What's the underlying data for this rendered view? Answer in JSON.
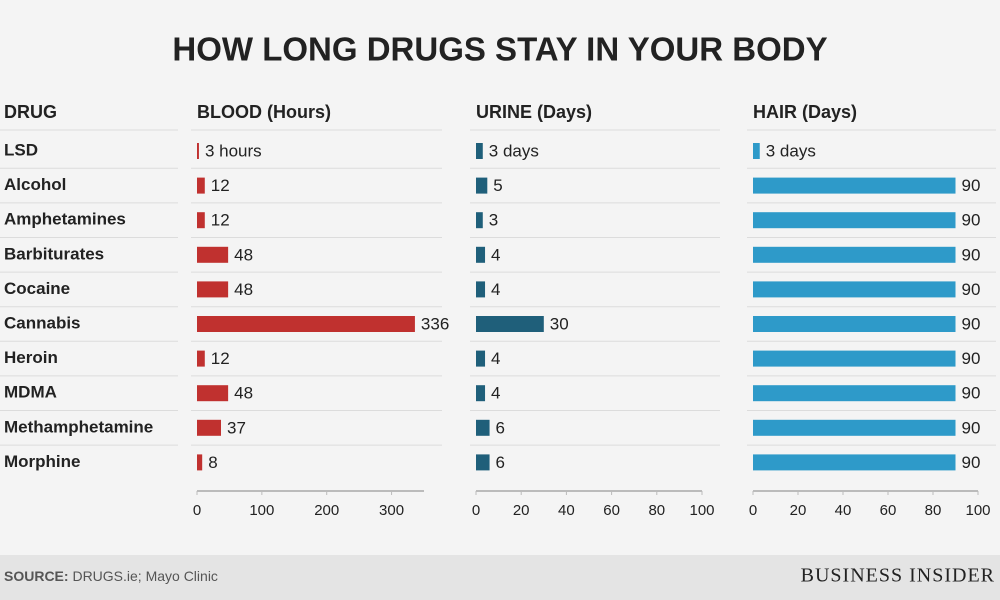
{
  "chart_data": {
    "type": "bar",
    "orientation": "horizontal",
    "title": "HOW LONG DRUGS STAY IN YOUR BODY",
    "category_label": "DRUG",
    "categories": [
      "LSD",
      "Alcohol",
      "Amphetamines",
      "Barbiturates",
      "Cocaine",
      "Cannabis",
      "Heroin",
      "MDMA",
      "Methamphetamine",
      "Morphine"
    ],
    "series": [
      {
        "name": "BLOOD (Hours)",
        "color": "#c0312f",
        "values": [
          3,
          12,
          12,
          48,
          48,
          336,
          12,
          48,
          37,
          8
        ],
        "value_labels": [
          "3 hours",
          "12",
          "12",
          "48",
          "48",
          "336",
          "12",
          "48",
          "37",
          "8"
        ],
        "xlim": [
          0,
          350
        ],
        "xticks": [
          0,
          100,
          200,
          300
        ]
      },
      {
        "name": "URINE (Days)",
        "color": "#1f5f7a",
        "values": [
          3,
          5,
          3,
          4,
          4,
          30,
          4,
          4,
          6,
          6
        ],
        "value_labels": [
          "3 days",
          "5",
          "3",
          "4",
          "4",
          "30",
          "4",
          "4",
          "6",
          "6"
        ],
        "xlim": [
          0,
          100
        ],
        "xticks": [
          0,
          20,
          40,
          60,
          80,
          100
        ]
      },
      {
        "name": "HAIR (Days)",
        "color": "#2e9ac9",
        "values": [
          3,
          90,
          90,
          90,
          90,
          90,
          90,
          90,
          90,
          90
        ],
        "value_labels": [
          "3 days",
          "90",
          "90",
          "90",
          "90",
          "90",
          "90",
          "90",
          "90",
          "90"
        ],
        "xlim": [
          0,
          100
        ],
        "xticks": [
          0,
          20,
          40,
          60,
          80,
          100
        ]
      }
    ],
    "source_label": "SOURCE:",
    "source": "DRUGS.ie; Mayo Clinic",
    "brand": "BUSINESS INSIDER"
  }
}
